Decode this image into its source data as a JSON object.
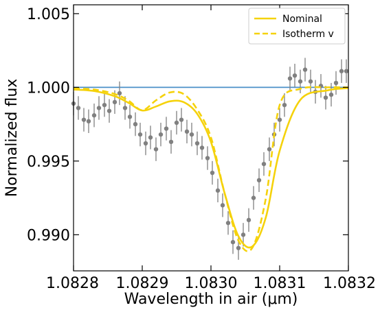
{
  "chart_data": {
    "type": "line",
    "xlabel": "Wavelength in air (μm)",
    "ylabel": "Normalized flux",
    "xlim": [
      1.0828,
      1.0832
    ],
    "ylim": [
      0.98755,
      1.0056
    ],
    "xticks": [
      {
        "value": 1.0828,
        "label": "1.0828"
      },
      {
        "value": 1.0829,
        "label": "1.0829"
      },
      {
        "value": 1.083,
        "label": "1.0830"
      },
      {
        "value": 1.0831,
        "label": "1.0831"
      },
      {
        "value": 1.0832,
        "label": "1.0832"
      }
    ],
    "yticks": [
      {
        "value": 0.99,
        "label": "0.990"
      },
      {
        "value": 0.995,
        "label": "0.995"
      },
      {
        "value": 1.0,
        "label": "1.000"
      },
      {
        "value": 1.005,
        "label": "1.005"
      }
    ],
    "grid": false,
    "legend": {
      "position": "top-right"
    },
    "reference_line": {
      "y": 1.0,
      "color": "#4a90c8"
    },
    "series": [
      {
        "name": "Nominal",
        "style": "solid",
        "color": "#f5d20b",
        "x": [
          1.0828,
          1.08283,
          1.08286,
          1.08288,
          1.0829,
          1.08292,
          1.08294,
          1.08296,
          1.08298,
          1.083,
          1.08302,
          1.08304,
          1.08306,
          1.08308,
          1.0831,
          1.08313,
          1.08317,
          1.0832
        ],
        "y": [
          0.99985,
          0.99975,
          0.9994,
          0.99895,
          0.99843,
          0.9987,
          0.99905,
          0.999,
          0.9982,
          0.9963,
          0.9928,
          0.9899,
          0.9892,
          0.9912,
          0.9957,
          0.99915,
          0.9998,
          0.99995
        ]
      },
      {
        "name": "Isotherm v",
        "style": "dashed",
        "color": "#f5d20b",
        "x": [
          1.0828,
          1.08283,
          1.08286,
          1.08288,
          1.0829,
          1.08292,
          1.08294,
          1.08296,
          1.08298,
          1.083,
          1.08302,
          1.08304,
          1.08306,
          1.08308,
          1.0831,
          1.08313,
          1.08317,
          1.0832
        ],
        "y": [
          0.99993,
          0.99985,
          0.99955,
          0.9991,
          0.99845,
          0.99912,
          0.99965,
          0.99955,
          0.9985,
          0.9966,
          0.9928,
          0.9896,
          0.9891,
          0.9925,
          0.9988,
          0.9999,
          1.0,
          1.0
        ]
      },
      {
        "name": "",
        "type": "scatter",
        "color": "#808080",
        "error_bar": 0.0008,
        "x": [
          1.0828,
          1.082807,
          1.082815,
          1.082822,
          1.08283,
          1.082837,
          1.082845,
          1.082852,
          1.08286,
          1.082867,
          1.082875,
          1.082882,
          1.08289,
          1.082897,
          1.082905,
          1.082912,
          1.08292,
          1.082927,
          1.082935,
          1.082942,
          1.08295,
          1.082957,
          1.082965,
          1.082972,
          1.08298,
          1.082987,
          1.082995,
          1.083002,
          1.08301,
          1.083017,
          1.083025,
          1.083032,
          1.08304,
          1.083047,
          1.083055,
          1.083062,
          1.08307,
          1.083077,
          1.083085,
          1.083092,
          1.0831,
          1.083107,
          1.083115,
          1.083122,
          1.08313,
          1.083137,
          1.083145,
          1.083152,
          1.08316,
          1.083167,
          1.083175,
          1.083182,
          1.08319,
          1.083197
        ],
        "y": [
          0.9989,
          0.9986,
          0.9978,
          0.9977,
          0.9981,
          0.9986,
          0.9988,
          0.9984,
          0.999,
          0.9996,
          0.9986,
          0.998,
          0.9975,
          0.9968,
          0.9962,
          0.9966,
          0.9958,
          0.9968,
          0.9972,
          0.9963,
          0.9976,
          0.9978,
          0.997,
          0.9968,
          0.9962,
          0.9959,
          0.9952,
          0.9942,
          0.993,
          0.992,
          0.9908,
          0.9895,
          0.9891,
          0.99,
          0.991,
          0.9925,
          0.9937,
          0.9948,
          0.9958,
          0.9968,
          0.9978,
          0.9988,
          1.0006,
          1.0008,
          1.0004,
          1.0012,
          1.0004,
          0.9997,
          1.0001,
          0.9993,
          0.9995,
          1.0003,
          1.0011,
          1.0011
        ]
      }
    ]
  }
}
